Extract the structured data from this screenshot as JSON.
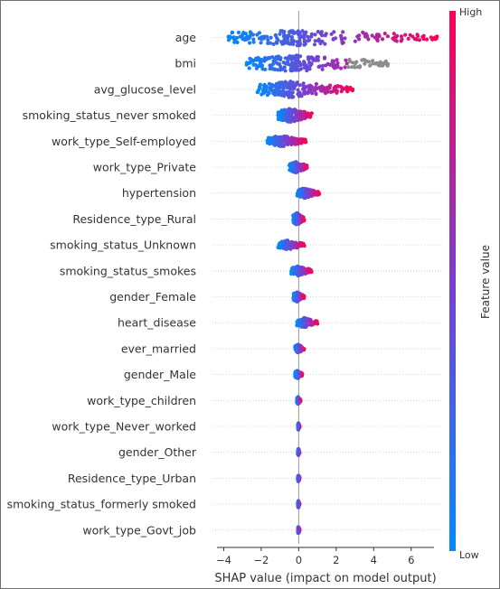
{
  "chart_data": {
    "type": "scatter",
    "subtype": "shap-beeswarm-summary",
    "xlabel": "SHAP value (impact on model output)",
    "xlim": [
      -4.6,
      7.7
    ],
    "xticks": [
      -4,
      -2,
      0,
      2,
      4,
      6
    ],
    "xtick_labels": [
      "−4",
      "−2",
      "0",
      "2",
      "4",
      "6"
    ],
    "zero_line": 0,
    "colorbar": {
      "label": "Feature value",
      "high_label": "High",
      "low_label": "Low",
      "low_color": "#008bfb",
      "high_color": "#ff0052"
    },
    "features": [
      {
        "name": "age",
        "min": -3.9,
        "max": 7.4,
        "density": 3.0
      },
      {
        "name": "bmi",
        "min": -2.9,
        "max": 5.0,
        "density": 3.0
      },
      {
        "name": "avg_glucose_level",
        "min": -2.2,
        "max": 2.9,
        "density": 2.8
      },
      {
        "name": "smoking_status_never smoked",
        "min": -1.1,
        "max": 0.7,
        "density": 2.2
      },
      {
        "name": "work_type_Self-employed",
        "min": -1.7,
        "max": 0.4,
        "density": 1.6
      },
      {
        "name": "work_type_Private",
        "min": -0.5,
        "max": 0.5,
        "density": 1.6
      },
      {
        "name": "hypertension",
        "min": -0.1,
        "max": 1.1,
        "density": 1.4
      },
      {
        "name": "Residence_type_Rural",
        "min": -0.3,
        "max": 0.3,
        "density": 1.8
      },
      {
        "name": "smoking_status_Unknown",
        "min": -1.1,
        "max": 0.3,
        "density": 1.3
      },
      {
        "name": "smoking_status_smokes",
        "min": -0.4,
        "max": 0.7,
        "density": 1.3
      },
      {
        "name": "gender_Female",
        "min": -0.3,
        "max": 0.3,
        "density": 1.3
      },
      {
        "name": "heart_disease",
        "min": -0.1,
        "max": 1.0,
        "density": 1.3
      },
      {
        "name": "ever_married",
        "min": -0.2,
        "max": 0.3,
        "density": 1.0
      },
      {
        "name": "gender_Male",
        "min": -0.2,
        "max": 0.2,
        "density": 1.0
      },
      {
        "name": "work_type_children",
        "min": -0.1,
        "max": 0.1,
        "density": 0.8
      },
      {
        "name": "work_type_Never_worked",
        "min": -0.05,
        "max": 0.05,
        "density": 0.7
      },
      {
        "name": "gender_Other",
        "min": -0.05,
        "max": 0.05,
        "density": 0.7
      },
      {
        "name": "Residence_type_Urban",
        "min": -0.05,
        "max": 0.05,
        "density": 0.7
      },
      {
        "name": "smoking_status_formerly smoked",
        "min": -0.05,
        "max": 0.05,
        "density": 0.7
      },
      {
        "name": "work_type_Govt_job",
        "min": -0.05,
        "max": 0.05,
        "density": 0.7
      }
    ]
  }
}
